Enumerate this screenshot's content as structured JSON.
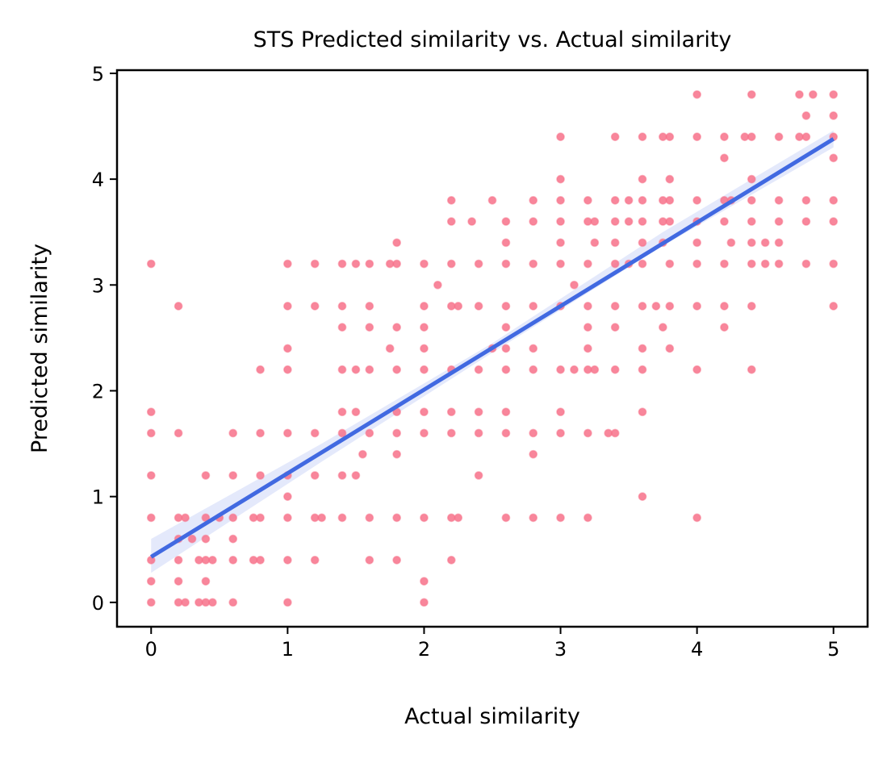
{
  "chart_data": {
    "type": "scatter",
    "title": "STS Predicted similarity vs. Actual similarity",
    "x_label": "Actual similarity",
    "y_label": "Predicted similarity",
    "xlim": [
      -0.25,
      5.25
    ],
    "ylim": [
      -0.23,
      5.03
    ],
    "xticks": [
      0,
      1,
      2,
      3,
      4,
      5
    ],
    "yticks": [
      0,
      1,
      2,
      3,
      4,
      5
    ],
    "series": [
      {
        "kind": "band",
        "color": "#dde3fa",
        "x": [
          0,
          1.25,
          2.5,
          3.75,
          5
        ],
        "lower": [
          0.28,
          1.33,
          2.36,
          3.37,
          4.3
        ],
        "upper": [
          0.6,
          1.5,
          2.45,
          3.5,
          4.46
        ]
      },
      {
        "kind": "points",
        "color": "#f77189",
        "x": [
          0,
          0,
          0,
          0,
          0,
          0,
          0,
          0,
          0.2,
          0.2,
          0.2,
          0.2,
          0.2,
          0.2,
          0.2,
          0.25,
          0.25,
          0.3,
          0.35,
          0.35,
          0.4,
          0.4,
          0.4,
          0.4,
          0.4,
          0.4,
          0.45,
          0.45,
          0.5,
          0.6,
          0.6,
          0.6,
          0.6,
          0.6,
          0.6,
          0.75,
          0.75,
          0.8,
          0.8,
          0.8,
          0.8,
          0.8,
          1,
          1,
          1,
          1,
          1,
          1,
          1,
          1,
          1,
          1,
          1.2,
          1.2,
          1.2,
          1.2,
          1.2,
          1.2,
          1.25,
          1.4,
          1.4,
          1.4,
          1.4,
          1.4,
          1.4,
          1.4,
          1.4,
          1.5,
          1.5,
          1.5,
          1.5,
          1.55,
          1.6,
          1.6,
          1.6,
          1.6,
          1.6,
          1.6,
          1.6,
          1.75,
          1.75,
          1.8,
          1.8,
          1.8,
          1.8,
          1.8,
          1.8,
          1.8,
          1.8,
          1.8,
          2,
          2,
          2,
          2,
          2,
          2,
          2,
          2,
          2,
          2,
          2.1,
          2.2,
          2.2,
          2.2,
          2.2,
          2.2,
          2.2,
          2.2,
          2.2,
          2.2,
          2.25,
          2.25,
          2.35,
          2.4,
          2.4,
          2.4,
          2.4,
          2.4,
          2.4,
          2.5,
          2.5,
          2.6,
          2.6,
          2.6,
          2.6,
          2.6,
          2.6,
          2.6,
          2.6,
          2.6,
          2.6,
          2.8,
          2.8,
          2.8,
          2.8,
          2.8,
          2.8,
          2.8,
          2.8,
          2.8,
          3,
          3,
          3,
          3,
          3,
          3,
          3,
          3,
          3,
          3,
          3,
          3.1,
          3.1,
          3.2,
          3.2,
          3.2,
          3.2,
          3.2,
          3.2,
          3.2,
          3.2,
          3.2,
          3.25,
          3.25,
          3.25,
          3.35,
          3.4,
          3.4,
          3.4,
          3.4,
          3.4,
          3.4,
          3.4,
          3.4,
          3.4,
          3.5,
          3.5,
          3.5,
          3.6,
          3.6,
          3.6,
          3.6,
          3.6,
          3.6,
          3.6,
          3.6,
          3.6,
          3.6,
          3.6,
          3.7,
          3.75,
          3.75,
          3.75,
          3.75,
          3.75,
          3.8,
          3.8,
          3.8,
          3.8,
          3.8,
          3.8,
          3.8,
          4,
          4,
          4,
          4,
          4,
          4,
          4,
          4,
          4,
          4.2,
          4.2,
          4.2,
          4.2,
          4.2,
          4.2,
          4.2,
          4.25,
          4.25,
          4.35,
          4.4,
          4.4,
          4.4,
          4.4,
          4.4,
          4.4,
          4.4,
          4.4,
          4.4,
          4.5,
          4.5,
          4.6,
          4.6,
          4.6,
          4.6,
          4.6,
          4.75,
          4.75,
          4.8,
          4.8,
          4.8,
          4.8,
          4.8,
          4.85,
          5,
          5,
          5,
          5,
          5,
          5,
          5,
          5
        ],
        "values": [
          0,
          0.2,
          0.4,
          0.8,
          1.2,
          1.6,
          1.8,
          3.2,
          0,
          0.2,
          0.4,
          0.6,
          0.8,
          1.6,
          2.8,
          0,
          0.8,
          0.6,
          0.4,
          0,
          0,
          0.2,
          0.4,
          0.6,
          0.8,
          1.2,
          0,
          0.4,
          0.8,
          0,
          0.4,
          0.6,
          0.8,
          1.2,
          1.6,
          0.4,
          0.8,
          0.4,
          0.8,
          1.2,
          1.6,
          2.2,
          0,
          0.4,
          0.8,
          1,
          1.2,
          1.6,
          2.2,
          2.4,
          2.8,
          3.2,
          0.4,
          0.8,
          1.2,
          1.6,
          2.8,
          3.2,
          0.8,
          0.8,
          1.2,
          1.6,
          1.8,
          2.2,
          2.6,
          2.8,
          3.2,
          1.2,
          1.8,
          2.2,
          3.2,
          1.4,
          0.4,
          0.8,
          1.6,
          2.2,
          2.6,
          2.8,
          3.2,
          2.4,
          3.2,
          0.4,
          0.8,
          1.4,
          1.6,
          1.8,
          2.2,
          2.6,
          3.2,
          3.4,
          0,
          0.2,
          0.8,
          1.6,
          1.8,
          2.2,
          2.4,
          2.6,
          2.8,
          3.2,
          3,
          0.4,
          0.8,
          1.6,
          1.8,
          2.2,
          2.8,
          3.2,
          3.6,
          3.8,
          0.8,
          2.8,
          3.6,
          1.2,
          1.6,
          1.8,
          2.2,
          2.8,
          3.2,
          2.4,
          3.8,
          0.8,
          1.6,
          1.8,
          2.2,
          2.4,
          2.6,
          2.8,
          3.2,
          3.4,
          3.6,
          0.8,
          1.4,
          1.6,
          2.2,
          2.4,
          2.8,
          3.2,
          3.6,
          3.8,
          0.8,
          1.6,
          1.8,
          2.2,
          2.8,
          3.2,
          3.4,
          3.6,
          3.8,
          4,
          4.4,
          2.2,
          3,
          0.8,
          1.6,
          2.2,
          2.4,
          2.6,
          2.8,
          3.2,
          3.6,
          3.8,
          2.2,
          3.4,
          3.6,
          1.6,
          1.6,
          2.2,
          2.6,
          2.8,
          3.2,
          3.4,
          3.6,
          3.8,
          4.4,
          3.2,
          3.6,
          3.8,
          1,
          1.8,
          2.2,
          2.4,
          2.8,
          3.2,
          3.4,
          3.6,
          3.8,
          4,
          4.4,
          2.8,
          2.6,
          3.4,
          3.6,
          3.8,
          4.4,
          2.4,
          2.8,
          3.2,
          3.6,
          3.8,
          4,
          4.4,
          0.8,
          2.2,
          2.8,
          3.2,
          3.4,
          3.6,
          3.8,
          4.4,
          4.8,
          2.6,
          2.8,
          3.2,
          3.6,
          3.8,
          4.2,
          4.4,
          3.4,
          3.8,
          4.4,
          2.2,
          2.8,
          3.2,
          3.4,
          3.6,
          3.8,
          4,
          4.4,
          4.8,
          3.2,
          3.4,
          3.2,
          3.4,
          3.6,
          3.8,
          4.4,
          4.4,
          4.8,
          3.2,
          3.6,
          3.8,
          4.4,
          4.6,
          4.8,
          2.8,
          3.2,
          3.6,
          3.8,
          4.2,
          4.4,
          4.6,
          4.8
        ]
      },
      {
        "kind": "fit",
        "color": "#4169e1",
        "x": [
          0,
          5
        ],
        "values": [
          0.43,
          4.38
        ]
      }
    ]
  }
}
